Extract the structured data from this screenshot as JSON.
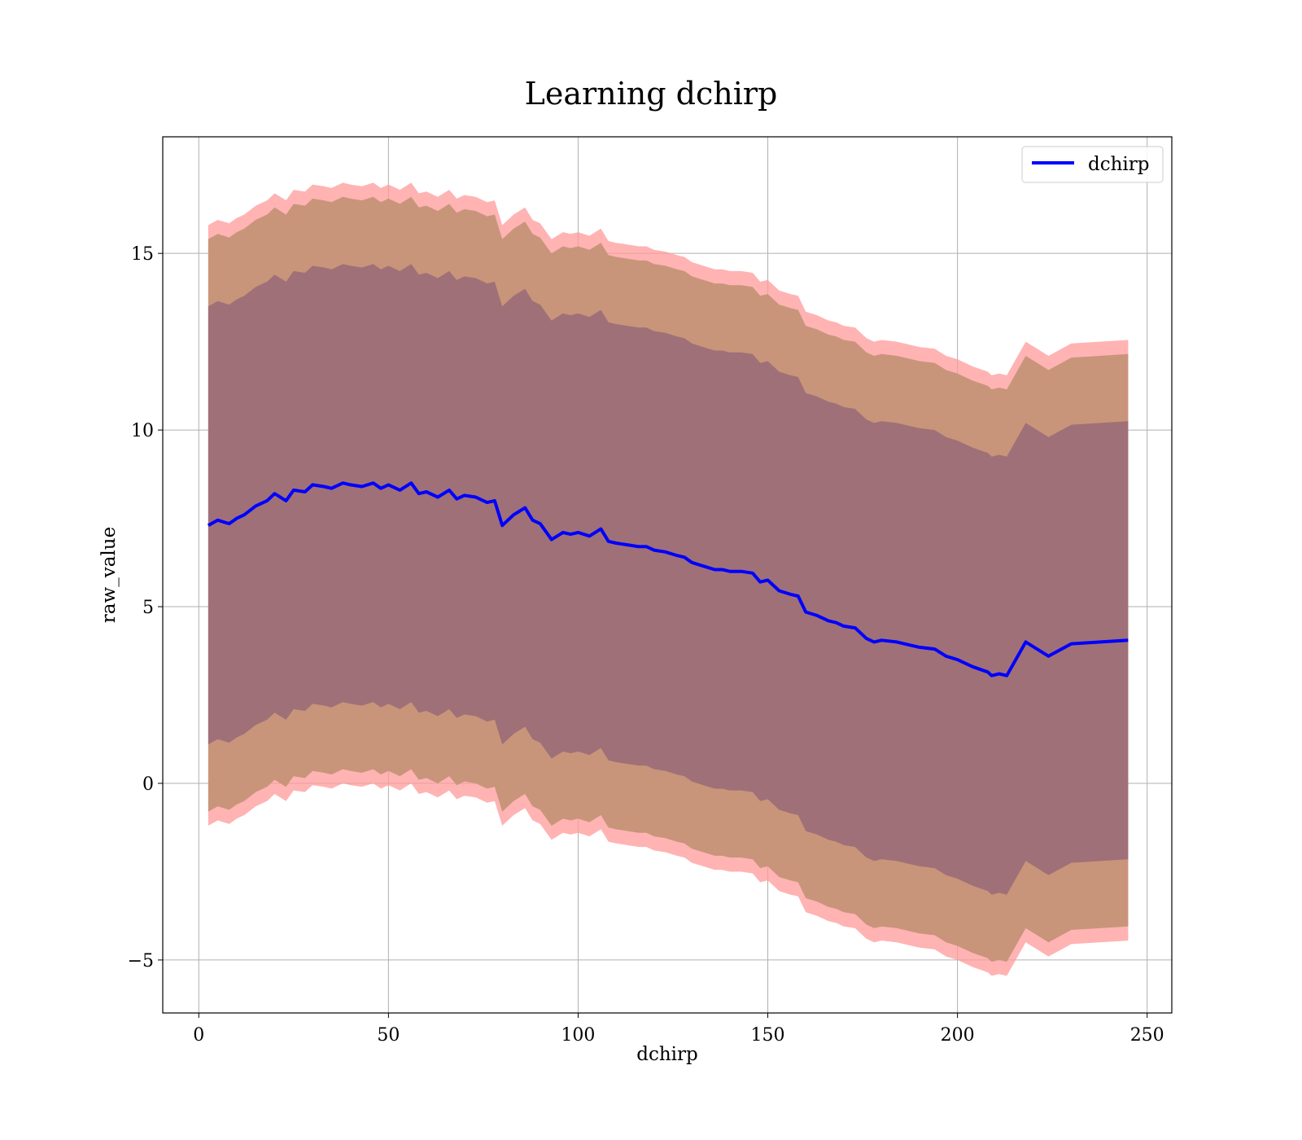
{
  "chart_data": {
    "type": "line",
    "title": "Learning dchirp",
    "xlabel": "dchirp",
    "ylabel": "raw_value",
    "xlim": [
      -9.5,
      256.5
    ],
    "ylim": [
      -6.5,
      18.3
    ],
    "xticks": [
      0,
      50,
      100,
      150,
      200,
      250
    ],
    "xtick_labels": [
      "0",
      "50",
      "100",
      "150",
      "200",
      "250"
    ],
    "yticks": [
      -5,
      0,
      5,
      10,
      15
    ],
    "ytick_labels": [
      "−5",
      "0",
      "5",
      "10",
      "15"
    ],
    "grid": true,
    "legend": {
      "placement": "top-right",
      "entries": [
        "dchirp"
      ]
    },
    "colors": {
      "line": "#0000ff",
      "outer_band": "#ff9a9a",
      "middle_band": "#c8957a",
      "inner_band": "#a07078"
    },
    "series": [
      {
        "name": "dchirp",
        "x": [
          2.5,
          5,
          8,
          10,
          12,
          15,
          18,
          20,
          23,
          25,
          28,
          30,
          33,
          35,
          38,
          40,
          43,
          46,
          48,
          50,
          53,
          56,
          58,
          60,
          63,
          66,
          68,
          70,
          73,
          76,
          78,
          80,
          83,
          86,
          88,
          90,
          93,
          96,
          98,
          100,
          103,
          106,
          108,
          110,
          113,
          116,
          118,
          120,
          123,
          126,
          128,
          130,
          133,
          136,
          138,
          140,
          143,
          146,
          148,
          150,
          153,
          156,
          158,
          160,
          163,
          166,
          168,
          170,
          173,
          176,
          178,
          180,
          184,
          188,
          190,
          194,
          197,
          200,
          204,
          208,
          209,
          211,
          213,
          218,
          224,
          230,
          245
        ],
        "y": [
          7.3,
          7.45,
          7.35,
          7.5,
          7.6,
          7.85,
          8.0,
          8.2,
          8.0,
          8.3,
          8.25,
          8.45,
          8.4,
          8.35,
          8.5,
          8.45,
          8.4,
          8.5,
          8.35,
          8.45,
          8.3,
          8.5,
          8.2,
          8.25,
          8.1,
          8.3,
          8.05,
          8.15,
          8.1,
          7.95,
          8.0,
          7.3,
          7.6,
          7.8,
          7.45,
          7.35,
          6.9,
          7.1,
          7.05,
          7.1,
          7.0,
          7.2,
          6.85,
          6.8,
          6.75,
          6.7,
          6.7,
          6.6,
          6.55,
          6.45,
          6.4,
          6.25,
          6.15,
          6.05,
          6.05,
          6.0,
          6.0,
          5.95,
          5.7,
          5.75,
          5.45,
          5.35,
          5.3,
          4.85,
          4.75,
          4.6,
          4.55,
          4.45,
          4.4,
          4.1,
          4.0,
          4.05,
          4.0,
          3.9,
          3.85,
          3.8,
          3.6,
          3.5,
          3.3,
          3.15,
          3.05,
          3.1,
          3.05,
          4.0,
          3.6,
          3.95,
          4.05
        ]
      }
    ],
    "bands": [
      {
        "level": "outer",
        "offset": 8.5
      },
      {
        "level": "middle",
        "offset": 8.1
      },
      {
        "level": "inner",
        "offset": 6.2
      }
    ]
  }
}
